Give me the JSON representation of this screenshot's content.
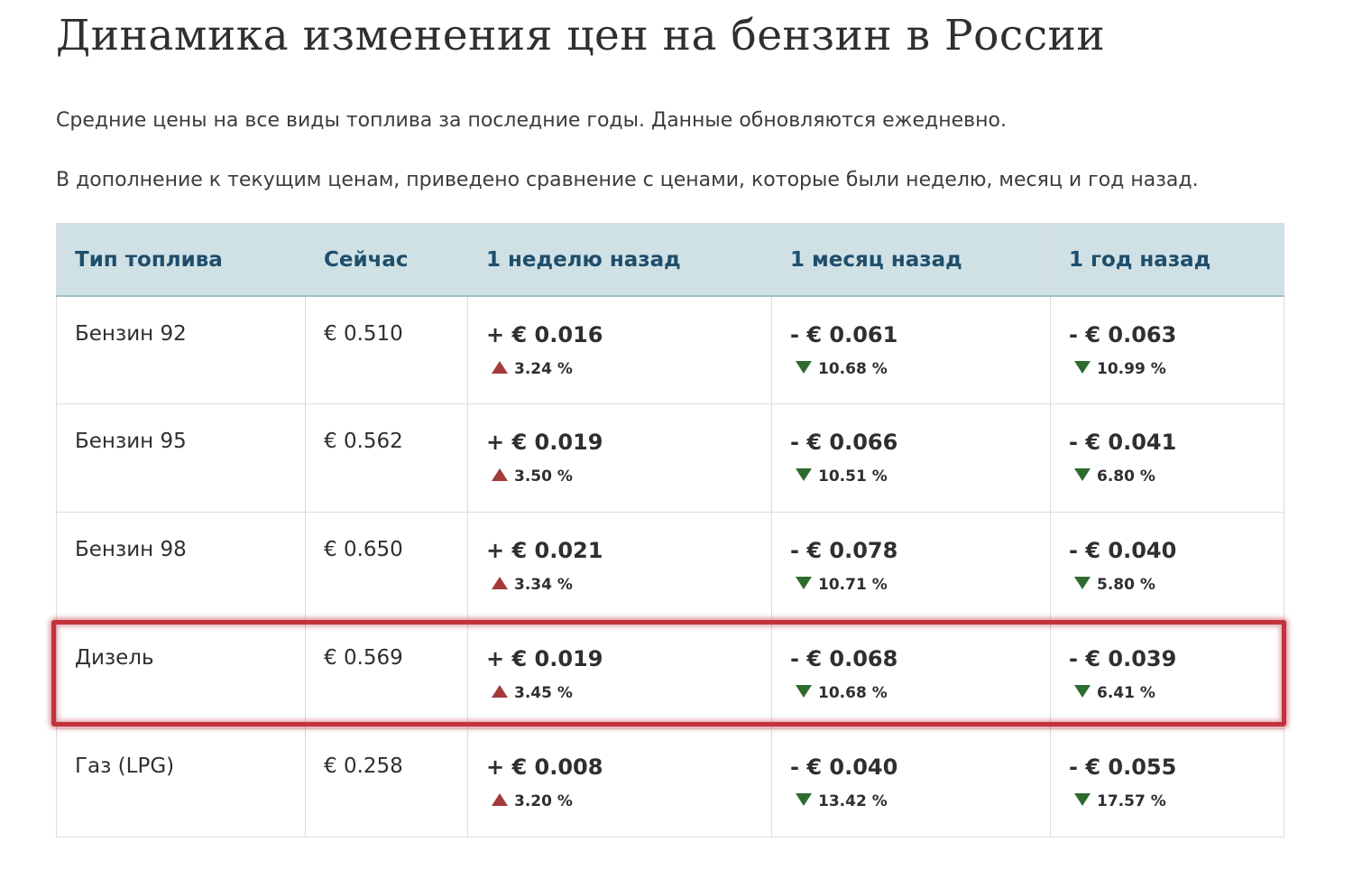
{
  "title": "Динамика изменения цен на бензин в России",
  "intro": [
    "Средние цены на все виды топлива за последние годы. Данные обновляются ежедневно.",
    "В дополнение к текущим ценам, приведено сравнение с ценами, которые были неделю, месяц и год назад."
  ],
  "colors": {
    "header_bg": "#cfe1e5",
    "header_text": "#1f4e6b",
    "increase": "#a33b3b",
    "decrease": "#2e6b2e",
    "highlight": "#c0333d"
  },
  "table": {
    "headers": [
      "Тип топлива",
      "Сейчас",
      "1 неделю назад",
      "1 месяц назад",
      "1 год назад"
    ],
    "rows": [
      {
        "fuel": "Бензин 92",
        "now": "€ 0.510",
        "week": {
          "delta": "+ € 0.016",
          "pct": "3.24 %",
          "dir": "up"
        },
        "month": {
          "delta": "- € 0.061",
          "pct": "10.68 %",
          "dir": "down"
        },
        "year": {
          "delta": "- € 0.063",
          "pct": "10.99 %",
          "dir": "down"
        }
      },
      {
        "fuel": "Бензин 95",
        "now": "€ 0.562",
        "week": {
          "delta": "+ € 0.019",
          "pct": "3.50 %",
          "dir": "up"
        },
        "month": {
          "delta": "- € 0.066",
          "pct": "10.51 %",
          "dir": "down"
        },
        "year": {
          "delta": "- € 0.041",
          "pct": "6.80 %",
          "dir": "down"
        }
      },
      {
        "fuel": "Бензин 98",
        "now": "€ 0.650",
        "week": {
          "delta": "+ € 0.021",
          "pct": "3.34 %",
          "dir": "up"
        },
        "month": {
          "delta": "- € 0.078",
          "pct": "10.71 %",
          "dir": "down"
        },
        "year": {
          "delta": "- € 0.040",
          "pct": "5.80 %",
          "dir": "down"
        }
      },
      {
        "fuel": "Дизель",
        "now": "€ 0.569",
        "week": {
          "delta": "+ € 0.019",
          "pct": "3.45 %",
          "dir": "up"
        },
        "month": {
          "delta": "- € 0.068",
          "pct": "10.68 %",
          "dir": "down"
        },
        "year": {
          "delta": "- € 0.039",
          "pct": "6.41 %",
          "dir": "down"
        }
      },
      {
        "fuel": "Газ (LPG)",
        "now": "€ 0.258",
        "week": {
          "delta": "+ € 0.008",
          "pct": "3.20 %",
          "dir": "up"
        },
        "month": {
          "delta": "- € 0.040",
          "pct": "13.42 %",
          "dir": "down"
        },
        "year": {
          "delta": "- € 0.055",
          "pct": "17.57 %",
          "dir": "down"
        }
      }
    ]
  }
}
